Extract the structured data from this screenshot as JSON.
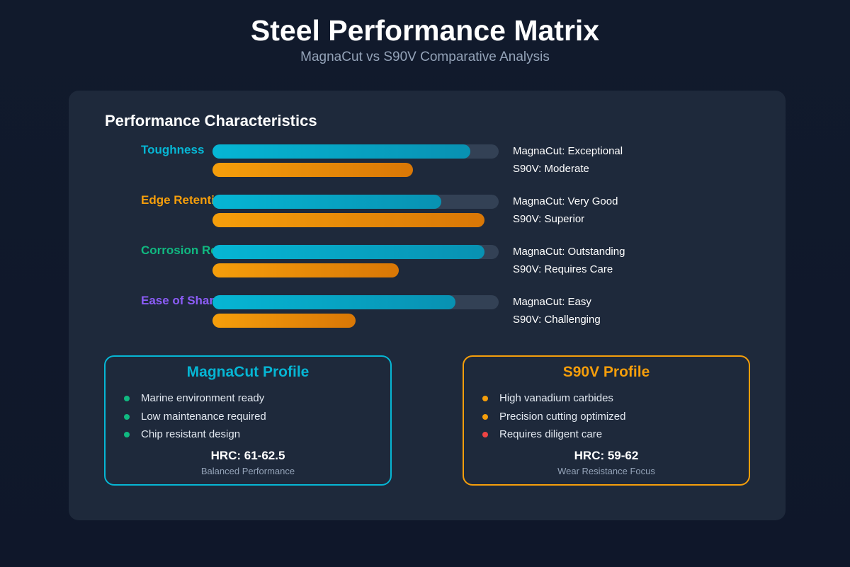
{
  "title": "Steel Performance Matrix",
  "subtitle": "MagnaCut vs S90V Comparative Analysis",
  "chart_data": {
    "type": "bar",
    "title": "Performance Characteristics",
    "categories": [
      "Toughness",
      "Edge Retention",
      "Corrosion Resistance",
      "Ease of Sharpening"
    ],
    "category_colors": [
      "#06b6d4",
      "#f59e0b",
      "#10b981",
      "#8b5cf6"
    ],
    "xlim": [
      0,
      100
    ],
    "series": [
      {
        "name": "MagnaCut",
        "color": "#06b6d4",
        "values": [
          90,
          80,
          95,
          85
        ],
        "ratings": [
          "MagnaCut: Exceptional",
          "MagnaCut: Very Good",
          "MagnaCut: Outstanding",
          "MagnaCut: Easy"
        ]
      },
      {
        "name": "S90V",
        "color": "#f59e0b",
        "values": [
          70,
          95,
          65,
          50
        ],
        "ratings": [
          "S90V: Moderate",
          "S90V: Superior",
          "S90V: Requires Care",
          "S90V: Challenging"
        ]
      }
    ]
  },
  "cards": [
    {
      "title": "MagnaCut Profile",
      "color": "#06b6d4",
      "items": [
        {
          "text": "Marine environment ready",
          "dot": "#10b981"
        },
        {
          "text": "Low maintenance required",
          "dot": "#10b981"
        },
        {
          "text": "Chip resistant design",
          "dot": "#10b981"
        }
      ],
      "hrc": "HRC: 61-62.5",
      "focus": "Balanced Performance"
    },
    {
      "title": "S90V Profile",
      "color": "#f59e0b",
      "items": [
        {
          "text": "High vanadium carbides",
          "dot": "#f59e0b"
        },
        {
          "text": "Precision cutting optimized",
          "dot": "#f59e0b"
        },
        {
          "text": "Requires diligent care",
          "dot": "#ef4444"
        }
      ],
      "hrc": "HRC: 59-62",
      "focus": "Wear Resistance Focus"
    }
  ]
}
